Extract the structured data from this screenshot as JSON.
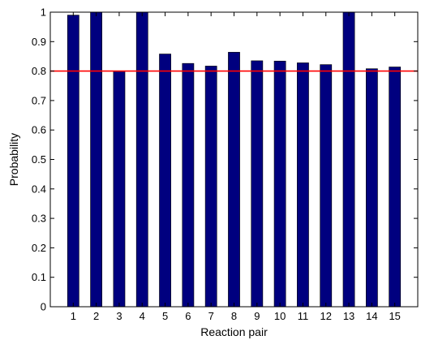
{
  "chart_data": {
    "type": "bar",
    "title": "",
    "xlabel": "Reaction pair",
    "ylabel": "Probability",
    "categories": [
      "1",
      "2",
      "3",
      "4",
      "5",
      "6",
      "7",
      "8",
      "9",
      "10",
      "11",
      "12",
      "13",
      "14",
      "15"
    ],
    "values": [
      0.99,
      1.0,
      0.8,
      1.0,
      0.858,
      0.826,
      0.817,
      0.864,
      0.835,
      0.834,
      0.828,
      0.822,
      1.0,
      0.808,
      0.814
    ],
    "ylim": [
      0,
      1
    ],
    "yticks": [
      "0",
      "0.1",
      "0.2",
      "0.3",
      "0.4",
      "0.5",
      "0.6",
      "0.7",
      "0.8",
      "0.9",
      "1"
    ],
    "reference_line": {
      "y": 0.8,
      "color": "#ff0000"
    },
    "bar_color": "#00007f",
    "grid": false,
    "box": true
  }
}
